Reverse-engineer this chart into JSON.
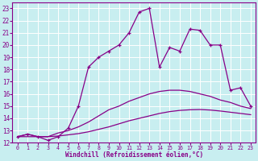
{
  "xlabel": "Windchill (Refroidissement éolien,°C)",
  "xlim": [
    -0.5,
    23.5
  ],
  "ylim": [
    12,
    23.5
  ],
  "xticks": [
    0,
    1,
    2,
    3,
    4,
    5,
    6,
    7,
    8,
    9,
    10,
    11,
    12,
    13,
    14,
    15,
    16,
    17,
    18,
    19,
    20,
    21,
    22,
    23
  ],
  "yticks": [
    12,
    13,
    14,
    15,
    16,
    17,
    18,
    19,
    20,
    21,
    22,
    23
  ],
  "bg_color": "#c8eef0",
  "grid_color": "#ffffff",
  "line_color": "#880088",
  "curves": [
    {
      "x": [
        0,
        1,
        2,
        3,
        4,
        5,
        6,
        7,
        8,
        9,
        10,
        11,
        12,
        13,
        14,
        15,
        16,
        17,
        18,
        19,
        20,
        21,
        22,
        23
      ],
      "y": [
        12.5,
        12.7,
        12.5,
        12.2,
        12.5,
        13.2,
        15.0,
        18.2,
        19.0,
        19.5,
        20.0,
        21.0,
        22.7,
        23.0,
        18.2,
        19.8,
        19.5,
        21.3,
        21.2,
        20.0,
        20.0,
        16.3,
        16.5,
        15.0
      ],
      "marker": true
    },
    {
      "x": [
        0,
        1,
        2,
        3,
        4,
        5,
        6,
        7,
        8,
        9,
        10,
        11,
        12,
        13,
        14,
        15,
        16,
        17,
        18,
        19,
        20,
        21,
        22,
        23
      ],
      "y": [
        12.5,
        12.7,
        12.5,
        12.5,
        12.8,
        13.0,
        13.3,
        13.7,
        14.2,
        14.7,
        15.0,
        15.4,
        15.7,
        16.0,
        16.2,
        16.3,
        16.3,
        16.2,
        16.0,
        15.8,
        15.5,
        15.3,
        15.0,
        14.8
      ],
      "marker": false
    },
    {
      "x": [
        0,
        1,
        2,
        3,
        4,
        5,
        6,
        7,
        8,
        9,
        10,
        11,
        12,
        13,
        14,
        15,
        16,
        17,
        18,
        19,
        20,
        21,
        22,
        23
      ],
      "y": [
        12.5,
        12.5,
        12.5,
        12.5,
        12.55,
        12.65,
        12.75,
        12.9,
        13.1,
        13.3,
        13.55,
        13.8,
        14.0,
        14.2,
        14.4,
        14.55,
        14.65,
        14.7,
        14.72,
        14.68,
        14.6,
        14.5,
        14.4,
        14.3
      ],
      "marker": false
    }
  ]
}
